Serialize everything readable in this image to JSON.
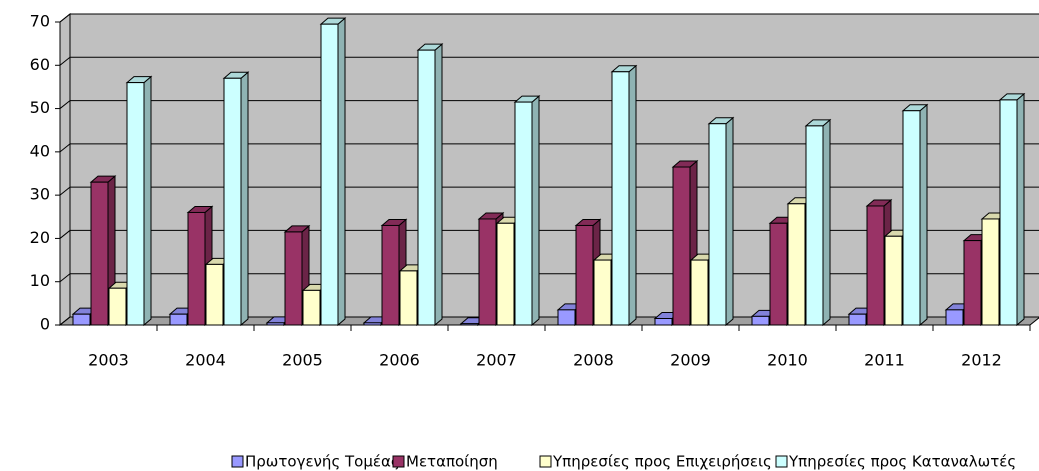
{
  "chart_data": {
    "type": "bar3d",
    "categories": [
      "2003",
      "2004",
      "2005",
      "2006",
      "2007",
      "2008",
      "2009",
      "2010",
      "2011",
      "2012"
    ],
    "series": [
      {
        "name": "Πρωτογενής Τομέας",
        "color": "#9999ff",
        "values": [
          2.5,
          2.5,
          0.5,
          0.5,
          0.3,
          3.5,
          1.5,
          2,
          2.5,
          3.5
        ]
      },
      {
        "name": "Μεταποίηση",
        "color": "#993366",
        "values": [
          33,
          26,
          21.5,
          23,
          24.5,
          23,
          36.5,
          23.5,
          27.5,
          19.5
        ]
      },
      {
        "name": "Υπηρεσίες προς Επιχειρήσεις",
        "color": "#ffffcc",
        "values": [
          8.5,
          14,
          8,
          12.5,
          23.5,
          15,
          15,
          28,
          20.5,
          24.5
        ]
      },
      {
        "name": "Υπηρεσίες προς Καταναλωτές",
        "color": "#ccffff",
        "values": [
          56,
          57,
          69.5,
          63.5,
          51.5,
          58.5,
          46.5,
          46,
          49.5,
          52
        ]
      }
    ],
    "ylim": [
      0,
      70
    ],
    "yticks": [
      0,
      10,
      20,
      30,
      40,
      50,
      60,
      70
    ],
    "grid": true,
    "wall_color": "#c0c0c0",
    "legend": "bottom"
  }
}
